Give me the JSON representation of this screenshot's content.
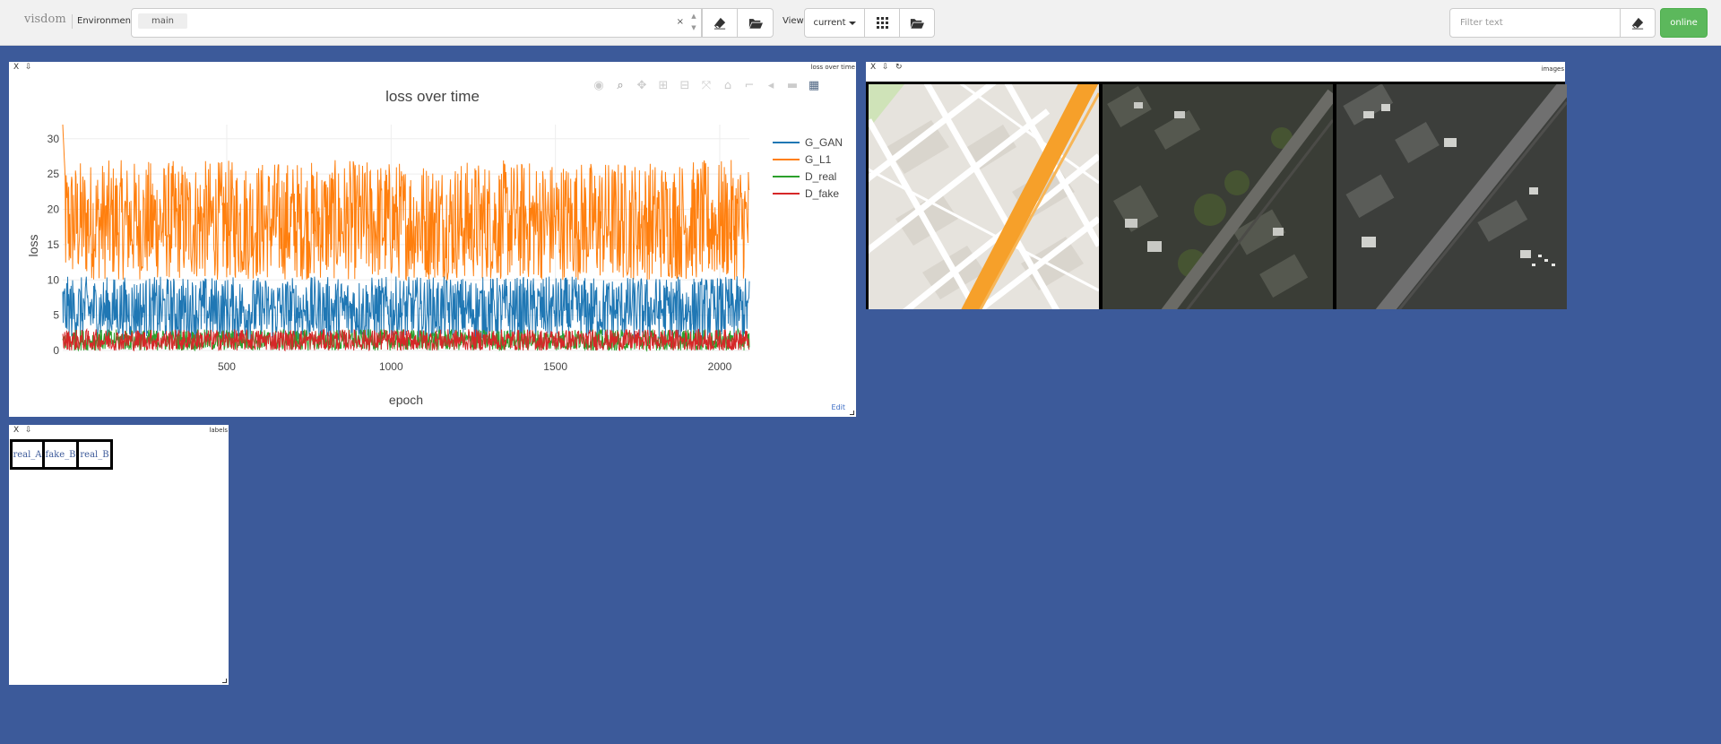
{
  "navbar": {
    "brand": "visdom",
    "environment_label": "Environment",
    "environment_chip": "main",
    "clear_symbol": "×",
    "view_label": "View",
    "view_select": "current",
    "filter_placeholder": "Filter text",
    "online_label": "online",
    "icons": [
      "eraser-icon",
      "folder-open-icon",
      "grid-icon",
      "folder-open-icon",
      "eraser-icon"
    ]
  },
  "panes": {
    "loss": {
      "window_title": "loss over time",
      "close_symbol": "X",
      "download_symbol": "⇩",
      "edit_label": "Edit"
    },
    "images": {
      "window_title": "images",
      "close_symbol": "X",
      "download_symbol": "⇩",
      "refresh_symbol": "↻"
    },
    "labels": {
      "window_title": "labels",
      "close_symbol": "X",
      "download_symbol": "⇩",
      "cells": [
        "real_A",
        "fake_B",
        "real_B"
      ]
    }
  },
  "chart_data": {
    "type": "line",
    "title": "loss over time",
    "xlabel": "epoch",
    "ylabel": "loss",
    "xlim": [
      1,
      2090
    ],
    "ylim": [
      0,
      32
    ],
    "x_ticks": [
      500,
      1000,
      1500,
      2000
    ],
    "y_ticks": [
      0,
      5,
      10,
      15,
      20,
      25,
      30
    ],
    "grid": true,
    "legend_position": "right",
    "series": [
      {
        "name": "G_GAN",
        "color": "#1f77b4",
        "low": 1.5,
        "high": 10.5,
        "mean": 5
      },
      {
        "name": "G_L1",
        "color": "#ff7f0e",
        "low": 10,
        "high": 27,
        "mean": 18,
        "start_peak": 32
      },
      {
        "name": "D_real",
        "color": "#2ca02c",
        "low": 0,
        "high": 3,
        "mean": 0.8
      },
      {
        "name": "D_fake",
        "color": "#d62728",
        "low": 0,
        "high": 3,
        "mean": 0.6
      }
    ]
  },
  "colors": {
    "background": "#3c5a9a",
    "online": "#5cb85c",
    "navbar": "#f1f1f1"
  }
}
